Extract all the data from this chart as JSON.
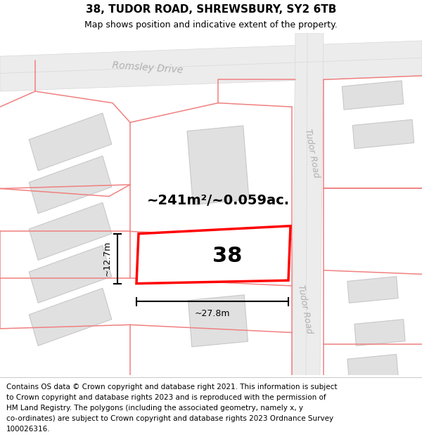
{
  "title": "38, TUDOR ROAD, SHREWSBURY, SY2 6TB",
  "subtitle": "Map shows position and indicative extent of the property.",
  "footer_lines": [
    "Contains OS data © Crown copyright and database right 2021. This information is subject",
    "to Crown copyright and database rights 2023 and is reproduced with the permission of",
    "HM Land Registry. The polygons (including the associated geometry, namely x, y",
    "co-ordinates) are subject to Crown copyright and database rights 2023 Ordnance Survey",
    "100026316."
  ],
  "area_text": "~241m²/~0.059ac.",
  "number_text": "38",
  "width_text": "~27.8m",
  "height_text": "~12.7m",
  "road_name_romsley": "Romsley Drive",
  "road_name_tudor_upper": "Tudor Road",
  "road_name_tudor_lower": "Tudor Road",
  "map_bg": "#f7f7f7",
  "road_bg": "#efefef",
  "building_color": "#e0e0e0",
  "building_edge": "#c8c8c8",
  "road_line_color": "#d8d8d8",
  "red_line_color": "#f08080",
  "highlight_edge": "red",
  "highlight_fill": "white",
  "road_label_color": "#b0b0b0",
  "title_fontsize": 11,
  "subtitle_fontsize": 9,
  "footer_fontsize": 7.5,
  "area_fontsize": 14,
  "number_fontsize": 22,
  "dim_fontsize": 9,
  "road_label_fontsize": 10
}
